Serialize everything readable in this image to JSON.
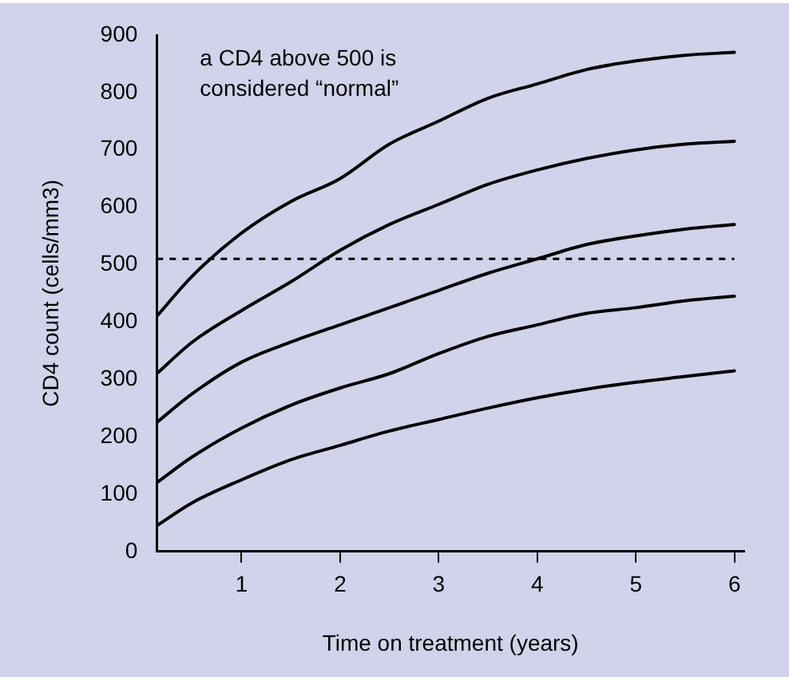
{
  "chart_data": {
    "type": "line",
    "xlabel": "Time on treatment (years)",
    "ylabel": "CD4 count (cells/mm3)",
    "annotations": [
      "a CD4 above 500 is considered “normal”"
    ],
    "series": [
      {
        "color": "#000000",
        "x": [
          0.14,
          0.5,
          1,
          1.5,
          2,
          2.5,
          3,
          3.5,
          4,
          4.5,
          5,
          5.5,
          6
        ],
        "values": [
          410,
          480,
          555,
          610,
          650,
          710,
          750,
          790,
          815,
          840,
          855,
          865,
          870
        ]
      },
      {
        "color": "#000000",
        "x": [
          0.14,
          0.5,
          1,
          1.5,
          2,
          2.5,
          3,
          3.5,
          4,
          4.5,
          5,
          5.5,
          6
        ],
        "values": [
          310,
          365,
          420,
          470,
          525,
          570,
          605,
          640,
          665,
          685,
          700,
          710,
          715
        ]
      },
      {
        "color": "#000000",
        "x": [
          0.14,
          0.5,
          1,
          1.5,
          2,
          2.5,
          3,
          3.5,
          4,
          4.5,
          5,
          5.5,
          6
        ],
        "values": [
          225,
          275,
          330,
          365,
          395,
          425,
          455,
          485,
          510,
          535,
          550,
          562,
          570
        ]
      },
      {
        "color": "#000000",
        "x": [
          0.14,
          0.5,
          1,
          1.5,
          2,
          2.5,
          3,
          3.5,
          4,
          4.5,
          5,
          5.5,
          6
        ],
        "values": [
          120,
          165,
          215,
          255,
          285,
          310,
          345,
          375,
          395,
          415,
          425,
          437,
          445
        ]
      },
      {
        "color": "#000000",
        "x": [
          0.14,
          0.5,
          1,
          1.5,
          2,
          2.5,
          3,
          3.5,
          4,
          4.5,
          5,
          5.5,
          6
        ],
        "values": [
          45,
          85,
          125,
          160,
          185,
          210,
          230,
          250,
          268,
          283,
          295,
          305,
          315
        ]
      }
    ],
    "ref_lines": [
      {
        "axis": "y",
        "value": 510,
        "line_style": "dashed",
        "color": "#000000"
      }
    ],
    "xlim": [
      0.14,
      6.1
    ],
    "xticks": [
      1,
      2,
      3,
      4,
      5,
      6
    ],
    "ylim": [
      0,
      900
    ],
    "yticks": [
      0,
      100,
      200,
      300,
      400,
      500,
      600,
      700,
      800,
      900
    ],
    "grid": false,
    "legend": false,
    "marker": "none",
    "line_style": "solid"
  }
}
